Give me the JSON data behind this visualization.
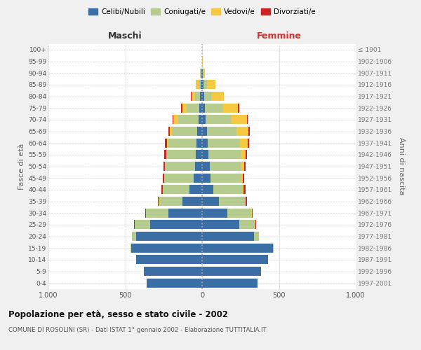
{
  "age_groups": [
    "0-4",
    "5-9",
    "10-14",
    "15-19",
    "20-24",
    "25-29",
    "30-34",
    "35-39",
    "40-44",
    "45-49",
    "50-54",
    "55-59",
    "60-64",
    "65-69",
    "70-74",
    "75-79",
    "80-84",
    "85-89",
    "90-94",
    "95-99",
    "100+"
  ],
  "birth_years": [
    "1997-2001",
    "1992-1996",
    "1987-1991",
    "1982-1986",
    "1977-1981",
    "1972-1976",
    "1967-1971",
    "1962-1966",
    "1957-1961",
    "1952-1956",
    "1947-1951",
    "1942-1946",
    "1937-1941",
    "1932-1936",
    "1927-1931",
    "1922-1926",
    "1917-1921",
    "1912-1916",
    "1907-1911",
    "1902-1906",
    "≤ 1901"
  ],
  "maschi": {
    "celibi": [
      360,
      380,
      430,
      460,
      430,
      340,
      220,
      130,
      80,
      55,
      45,
      40,
      35,
      30,
      25,
      20,
      15,
      10,
      5,
      2,
      2
    ],
    "coniugati": [
      0,
      0,
      0,
      5,
      25,
      100,
      145,
      150,
      175,
      190,
      195,
      190,
      185,
      165,
      130,
      80,
      30,
      15,
      5,
      0,
      0
    ],
    "vedovi": [
      0,
      0,
      0,
      0,
      0,
      0,
      1,
      1,
      2,
      2,
      2,
      5,
      10,
      15,
      30,
      30,
      25,
      15,
      3,
      0,
      0
    ],
    "divorziati": [
      0,
      0,
      0,
      0,
      0,
      3,
      5,
      8,
      10,
      10,
      10,
      12,
      12,
      10,
      8,
      5,
      2,
      1,
      0,
      0,
      0
    ]
  },
  "femmine": {
    "nubili": [
      360,
      385,
      430,
      460,
      340,
      240,
      165,
      110,
      75,
      55,
      48,
      42,
      35,
      30,
      25,
      20,
      15,
      10,
      5,
      2,
      2
    ],
    "coniugate": [
      0,
      0,
      0,
      5,
      30,
      105,
      155,
      170,
      190,
      200,
      205,
      210,
      210,
      195,
      165,
      115,
      45,
      20,
      5,
      0,
      0
    ],
    "vedove": [
      0,
      0,
      0,
      0,
      1,
      1,
      2,
      3,
      5,
      8,
      20,
      30,
      50,
      75,
      100,
      100,
      80,
      55,
      10,
      2,
      0
    ],
    "divorziate": [
      0,
      0,
      0,
      0,
      1,
      4,
      8,
      10,
      12,
      10,
      10,
      12,
      12,
      10,
      8,
      5,
      3,
      1,
      0,
      0,
      0
    ]
  },
  "colors": {
    "celibi": "#3a6ea5",
    "coniugati": "#b5cc8e",
    "vedovi": "#f5c842",
    "divorziati": "#cc2222"
  },
  "xlim": 1000,
  "title": "Popolazione per età, sesso e stato civile - 2002",
  "subtitle": "COMUNE DI ROSOLINI (SR) - Dati ISTAT 1° gennaio 2002 - Elaborazione TUTTITALIA.IT",
  "ylabel_left": "Fasce di età",
  "ylabel_right": "Anni di nascita",
  "xlabel_left": "Maschi",
  "xlabel_right": "Femmine",
  "legend_labels": [
    "Celibi/Nubili",
    "Coniugati/e",
    "Vedovi/e",
    "Divorziati/e"
  ],
  "bg_color": "#f0f0f0",
  "plot_bg": "#ffffff"
}
